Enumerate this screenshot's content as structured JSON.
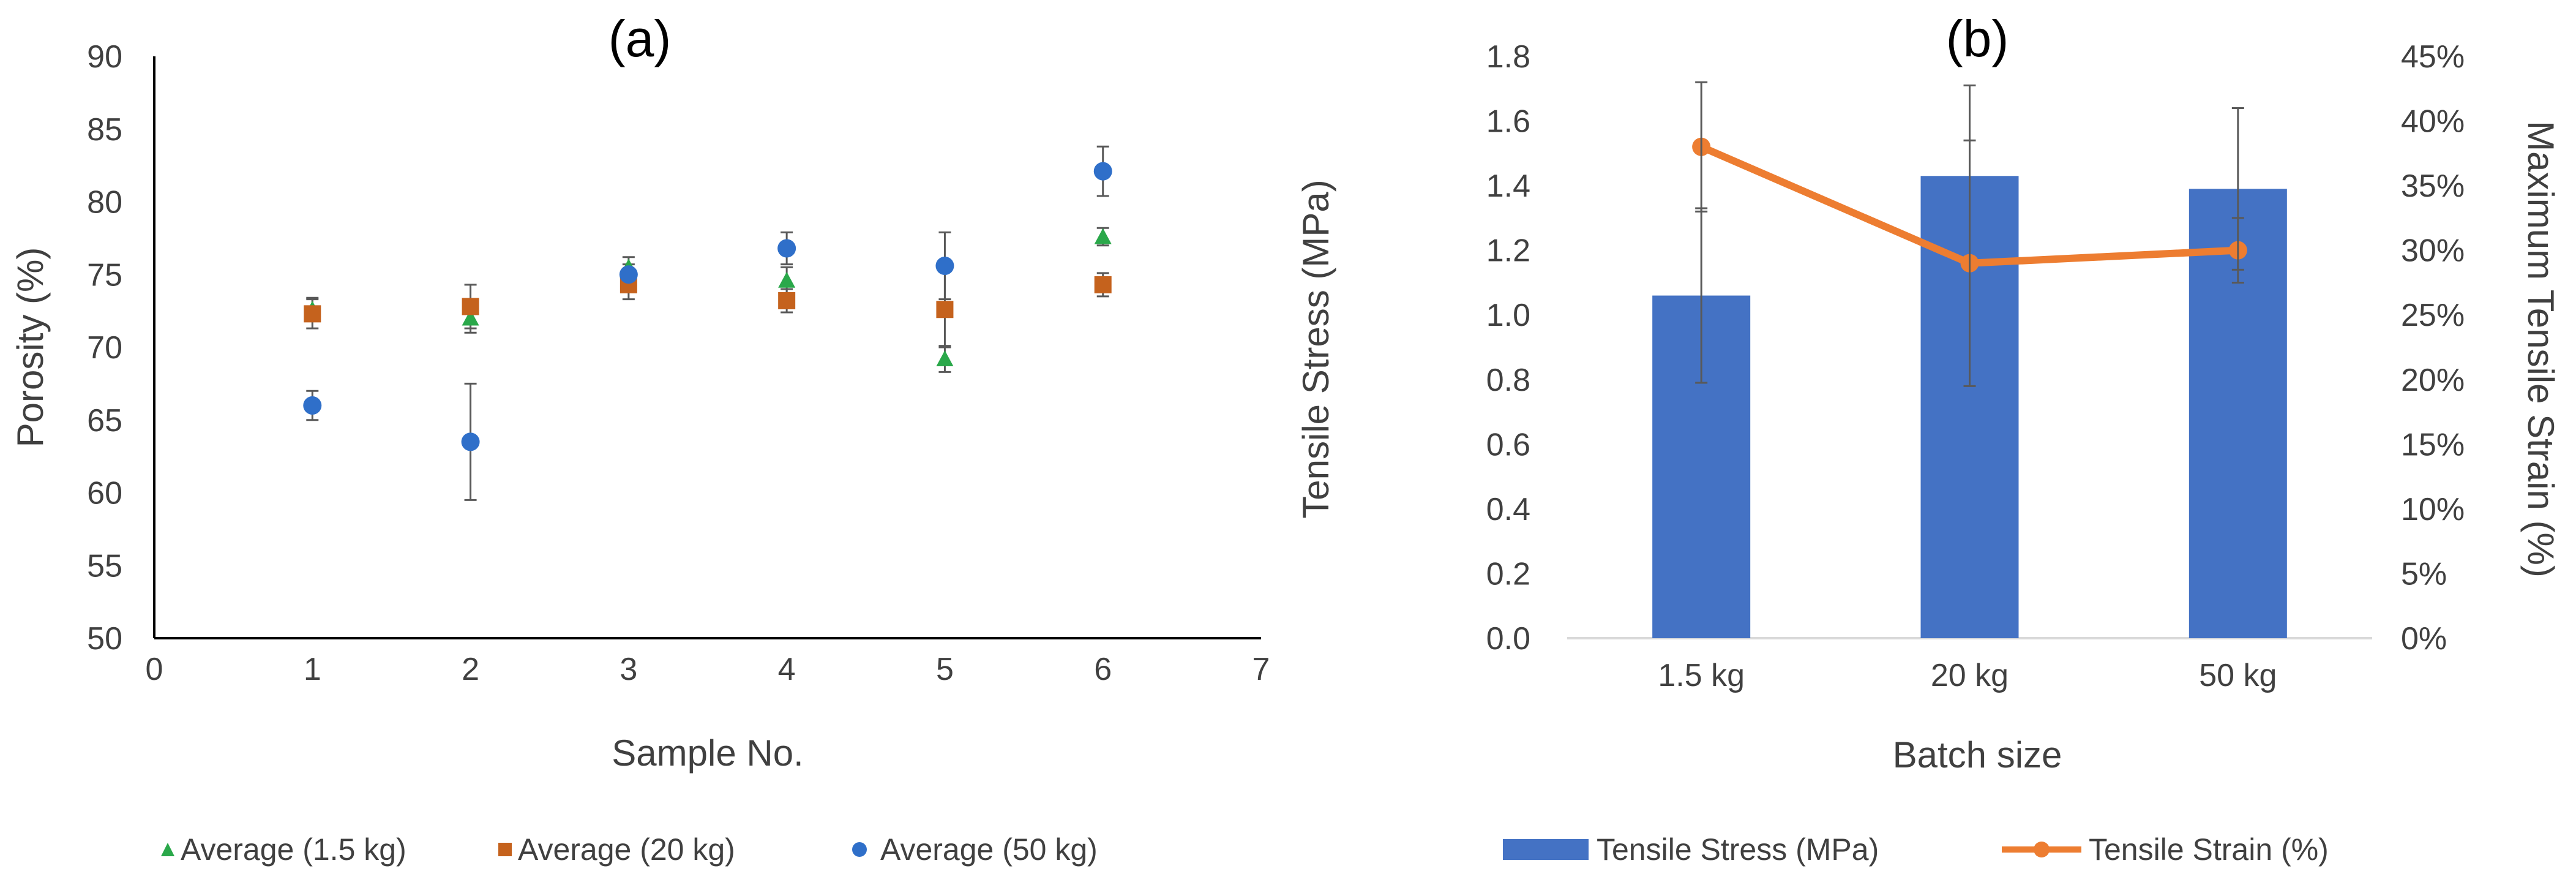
{
  "chart_data": [
    {
      "type": "scatter",
      "panel_label": "(a)",
      "xlabel": "Sample No.",
      "ylabel": "Porosity (%)",
      "xlim": [
        0,
        7
      ],
      "ylim": [
        50,
        90
      ],
      "x_ticks": [
        "0",
        "1",
        "2",
        "3",
        "4",
        "5",
        "6",
        "7"
      ],
      "y_ticks": [
        "50",
        "55",
        "60",
        "65",
        "70",
        "75",
        "80",
        "85",
        "90"
      ],
      "grid": false,
      "legend_position": "bottom",
      "series": [
        {
          "name": "Average (1.5 kg)",
          "marker": "triangle",
          "color": "#2aa84a",
          "x": [
            1,
            2,
            3,
            4,
            5,
            6
          ],
          "y": [
            72.6,
            72.0,
            75.5,
            74.6,
            69.2,
            77.6
          ],
          "err": [
            0.8,
            1.0,
            0.7,
            0.9,
            0.9,
            0.6
          ]
        },
        {
          "name": "Average (20 kg)",
          "marker": "square",
          "color": "#c5621d",
          "x": [
            1,
            2,
            3,
            4,
            5,
            6
          ],
          "y": [
            72.3,
            72.8,
            74.3,
            73.2,
            72.6,
            74.3
          ],
          "err": [
            1.0,
            1.5,
            1.0,
            0.8,
            2.6,
            0.8
          ]
        },
        {
          "name": "Average (50 kg)",
          "marker": "circle",
          "color": "#2f6fc9",
          "x": [
            1,
            2,
            3,
            4,
            5,
            6
          ],
          "y": [
            66.0,
            63.5,
            75.0,
            76.8,
            75.6,
            82.1
          ],
          "err": [
            1.0,
            4.0,
            0.7,
            1.1,
            2.3,
            1.7
          ]
        }
      ]
    },
    {
      "type": "bar",
      "panel_label": "(b)",
      "xlabel": "Batch size",
      "ylabel": "Tensile Stress (MPa)",
      "y2label": "Maximum Tensile Strain (%)",
      "categories": [
        "1.5 kg",
        "20 kg",
        "50 kg"
      ],
      "ylim": [
        0,
        1.8
      ],
      "y_ticks": [
        "0.0",
        "0.2",
        "0.4",
        "0.6",
        "0.8",
        "1.0",
        "1.2",
        "1.4",
        "1.6",
        "1.8"
      ],
      "y2lim": [
        0,
        45
      ],
      "y2_ticks": [
        "0%",
        "5%",
        "10%",
        "15%",
        "20%",
        "25%",
        "30%",
        "35%",
        "40%",
        "45%"
      ],
      "grid": false,
      "legend_position": "bottom",
      "series": [
        {
          "name": "Tensile Stress (MPa)",
          "kind": "bar",
          "axis": "left",
          "color": "#4472c4",
          "values": [
            1.06,
            1.43,
            1.39
          ],
          "err": [
            0.27,
            0.28,
            0.25
          ]
        },
        {
          "name": "Tensile Strain (%)",
          "kind": "line",
          "axis": "right",
          "color": "#ed7d31",
          "values": [
            38,
            29,
            30
          ],
          "err": [
            5,
            9.5,
            2.5
          ]
        }
      ]
    }
  ]
}
